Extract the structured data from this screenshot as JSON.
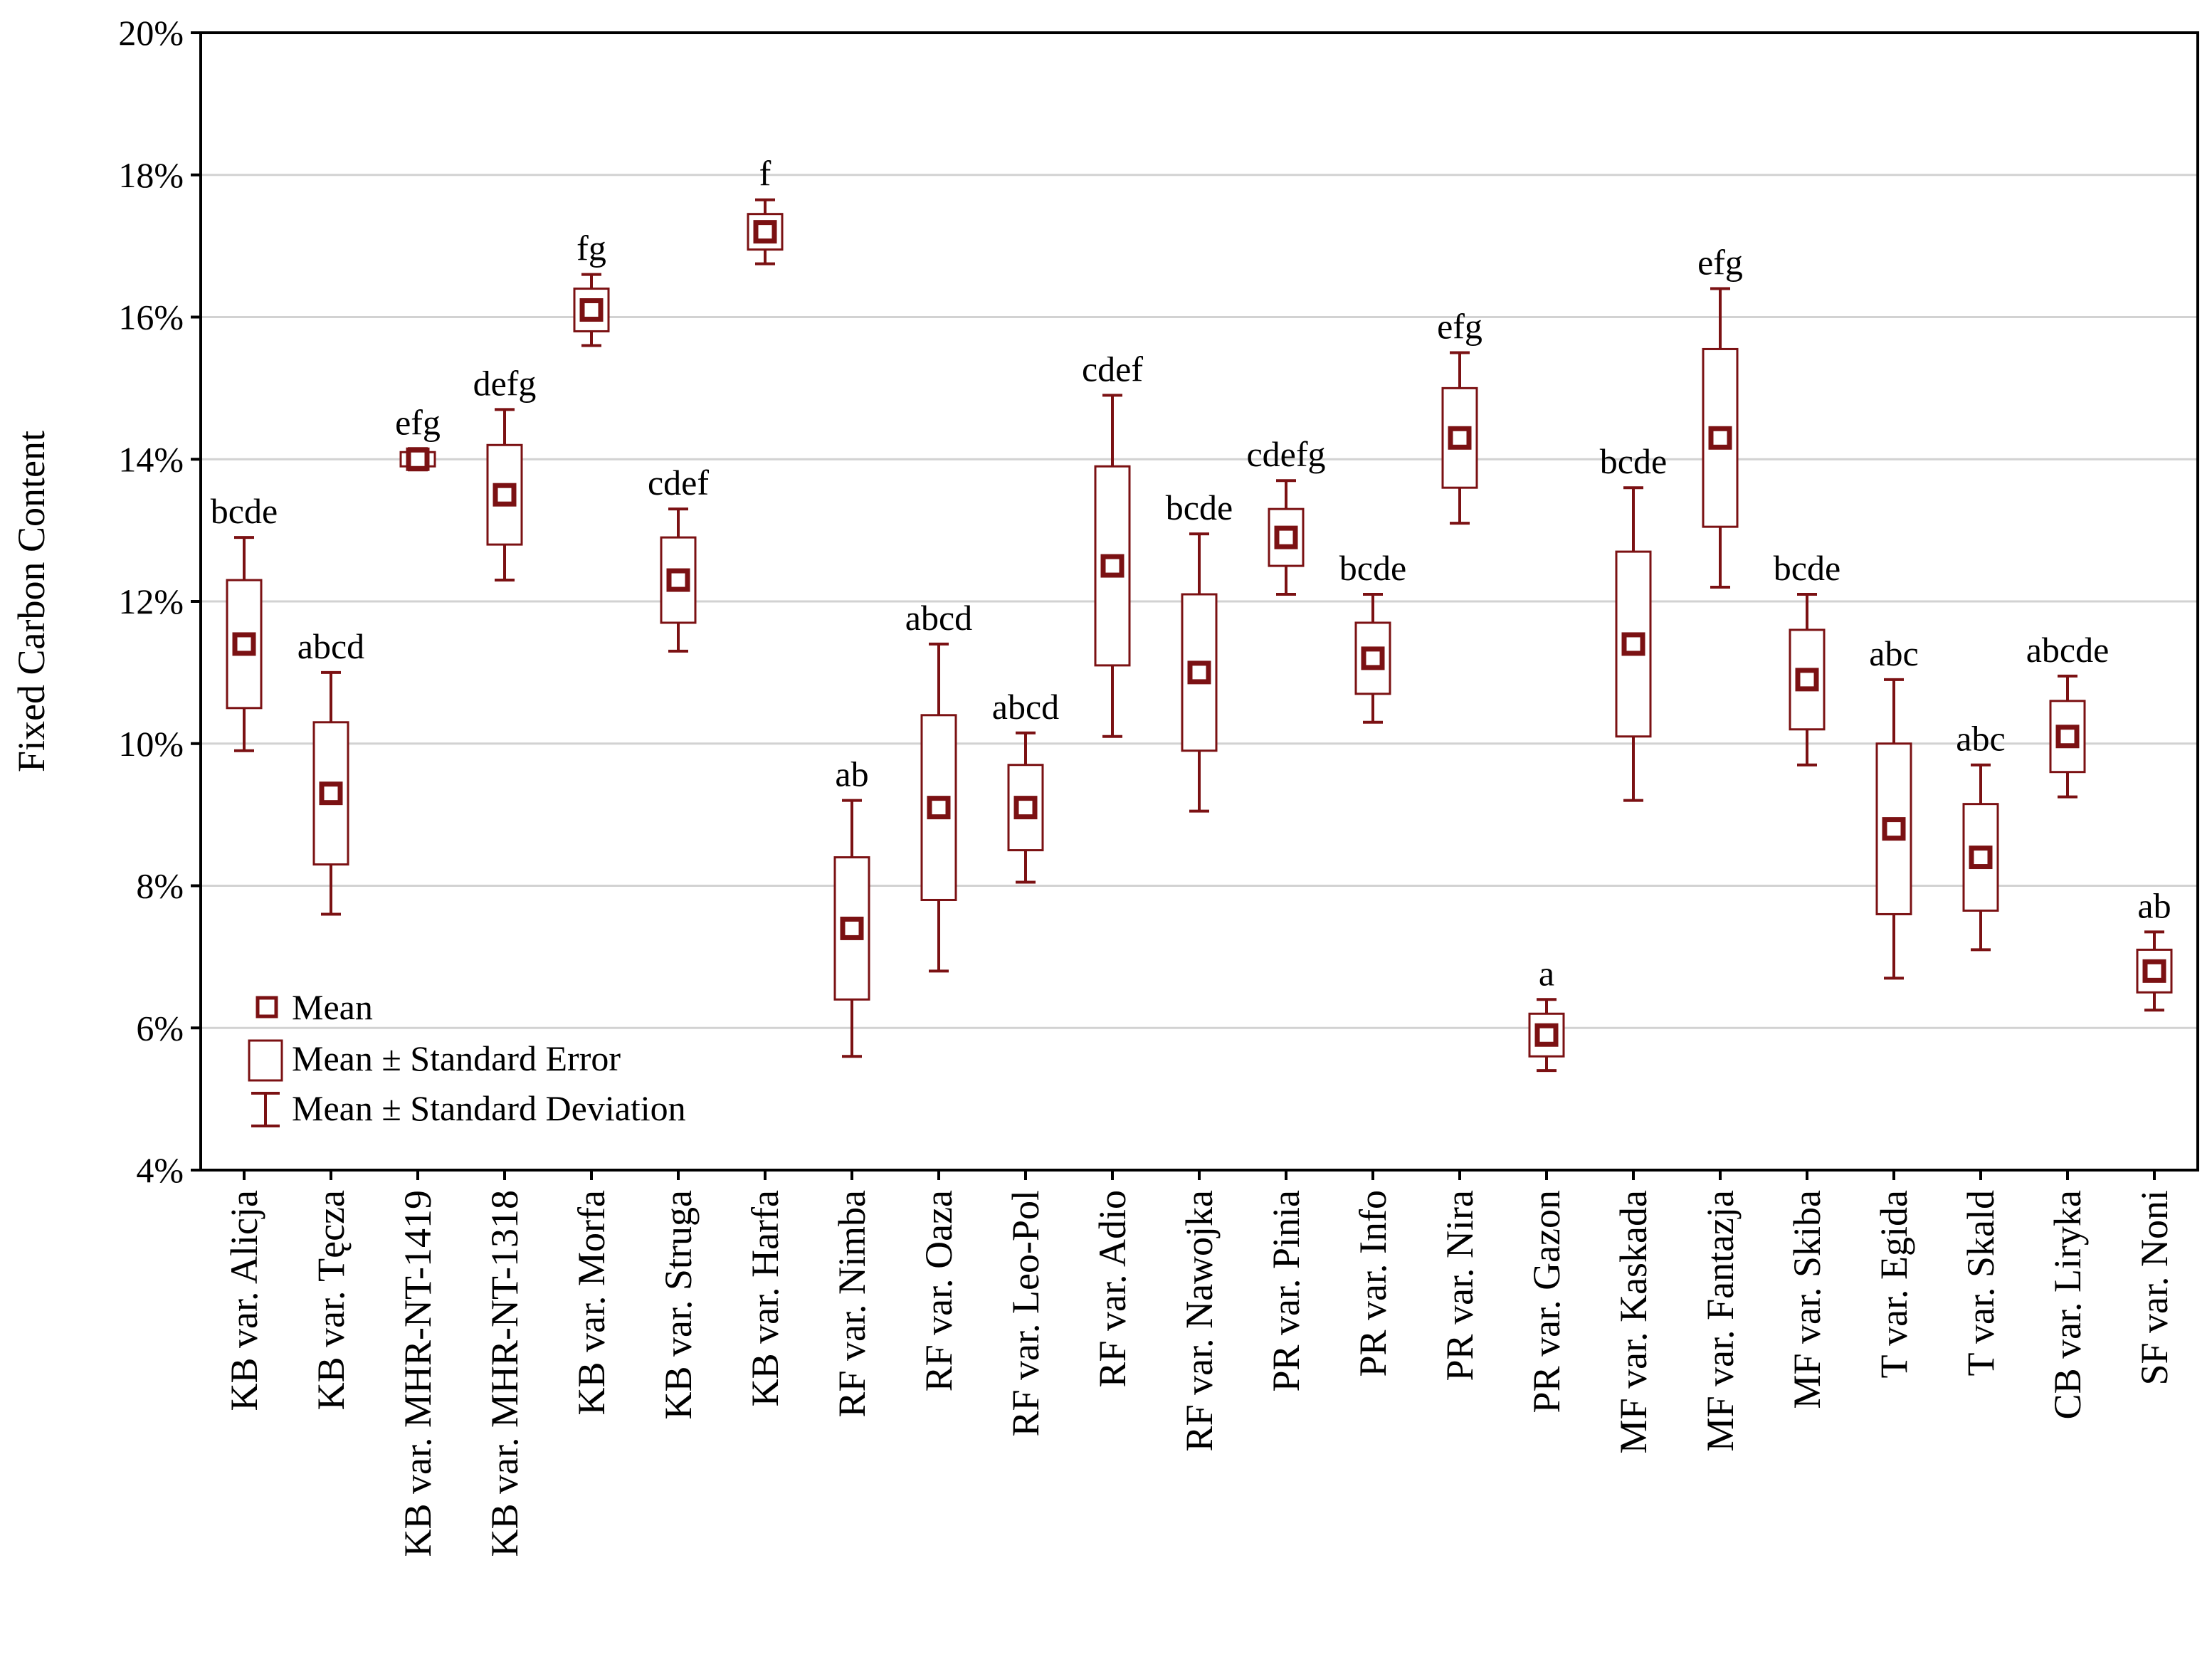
{
  "chart_data": {
    "type": "box",
    "title": "",
    "xlabel": "",
    "ylabel": "Fixed Carbon Content",
    "ylim": [
      4,
      20
    ],
    "yticks": [
      "4%",
      "6%",
      "8%",
      "10%",
      "12%",
      "14%",
      "16%",
      "18%",
      "20%"
    ],
    "grid": "horizontal",
    "color": "#7b1113",
    "categories": [
      "KB var. Alicja",
      "KB var. Tęcza",
      "KB var. MHR-NT-1419",
      "KB var. MHR-NT-1318",
      "KB var. Morfa",
      "KB var. Struga",
      "KB var. Harfa",
      "RF var. Nimba",
      "RF var. Oaza",
      "RF var. Leo-Pol",
      "RF var. Adio",
      "RF var. Nawojka",
      "PR var. Pinia",
      "PR var. Info",
      "PR var. Nira",
      "PR var. Gazon",
      "MF var. Kaskada",
      "MF var. Fantazja",
      "MF var. Skiba",
      "T var. Egida",
      "T var. Skald",
      "CB var. Liryka",
      "SF var. Noni"
    ],
    "mean": [
      11.4,
      9.3,
      14.0,
      13.5,
      16.1,
      12.3,
      17.2,
      7.4,
      9.1,
      9.1,
      12.5,
      11.0,
      12.9,
      11.2,
      14.3,
      5.9,
      11.4,
      14.3,
      10.9,
      8.8,
      8.4,
      10.1,
      6.8
    ],
    "se": [
      0.9,
      1.0,
      0.1,
      0.7,
      0.3,
      0.6,
      0.25,
      1.0,
      1.3,
      0.6,
      1.4,
      1.1,
      0.4,
      0.5,
      0.7,
      0.3,
      1.3,
      1.25,
      0.7,
      1.2,
      0.75,
      0.5,
      0.3
    ],
    "sd": [
      1.5,
      1.7,
      0.15,
      1.2,
      0.5,
      1.0,
      0.45,
      1.8,
      2.3,
      1.05,
      2.4,
      1.95,
      0.8,
      0.9,
      1.2,
      0.5,
      2.2,
      2.1,
      1.2,
      2.1,
      1.3,
      0.85,
      0.55
    ],
    "group_labels": [
      "bcde",
      "abcd",
      "efg",
      "defg",
      "fg",
      "cdef",
      "f",
      "ab",
      "abcd",
      "abcd",
      "cdef",
      "bcde",
      "cdefg",
      "bcde",
      "efg",
      "a",
      "bcde",
      "efg",
      "bcde",
      "abc",
      "abc",
      "abcde",
      "ab"
    ],
    "legend": {
      "position": "bottom-left",
      "items": [
        "Mean",
        "Mean ± Standard Error",
        "Mean ± Standard Deviation"
      ]
    }
  }
}
